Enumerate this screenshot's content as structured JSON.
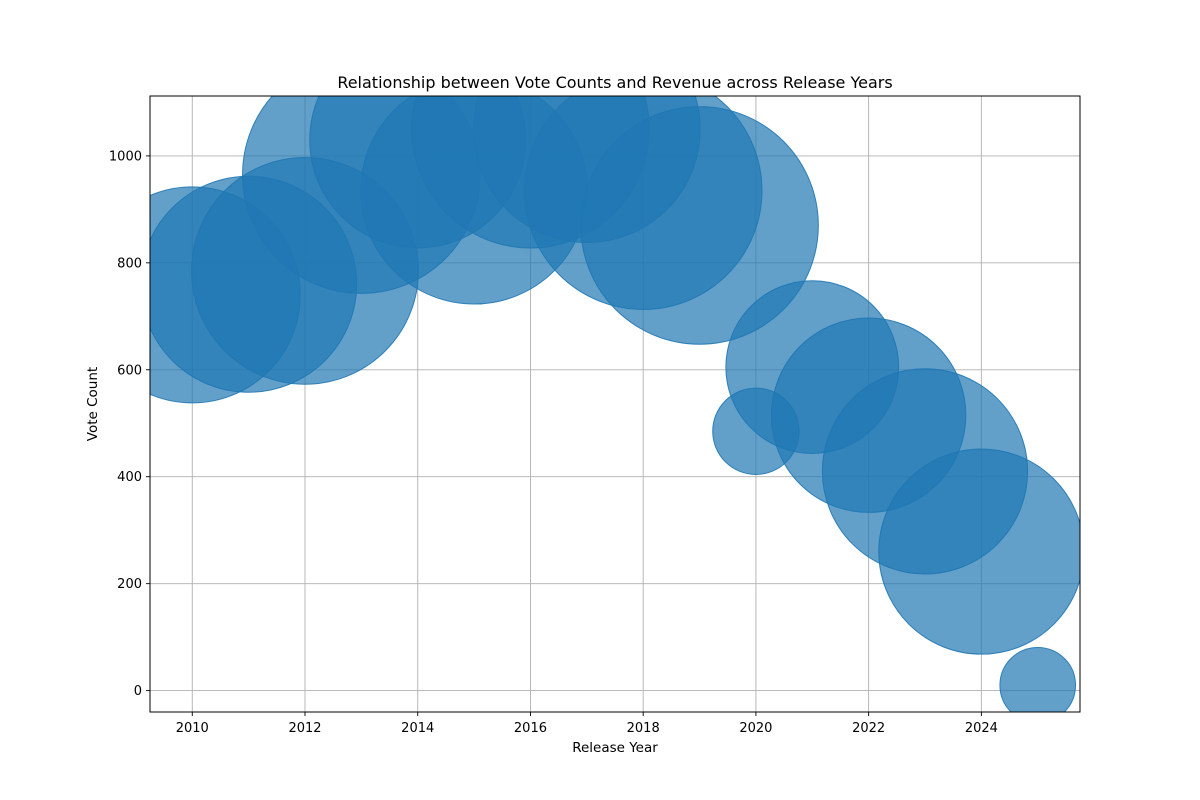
{
  "chart_data": {
    "type": "scatter",
    "title": "Relationship between Vote Counts and Revenue across Release Years",
    "xlabel": "Release Year",
    "ylabel": "Vote Count",
    "xlim": [
      2009.25,
      2025.75
    ],
    "ylim": [
      -40,
      1112
    ],
    "xticks": [
      2010,
      2012,
      2014,
      2016,
      2018,
      2020,
      2022,
      2024
    ],
    "yticks": [
      0,
      200,
      400,
      600,
      800,
      1000
    ],
    "grid": true,
    "color": "#1f77b4",
    "alpha": 0.7,
    "points": [
      {
        "x": 2010,
        "y": 740
      },
      {
        "x": 2011,
        "y": 760
      },
      {
        "x": 2012,
        "y": 785
      },
      {
        "x": 2013,
        "y": 965
      },
      {
        "x": 2014,
        "y": 1030
      },
      {
        "x": 2015,
        "y": 935
      },
      {
        "x": 2016,
        "y": 1050
      },
      {
        "x": 2017,
        "y": 1050
      },
      {
        "x": 2018,
        "y": 935
      },
      {
        "x": 2019,
        "y": 870
      },
      {
        "x": 2020,
        "y": 485
      },
      {
        "x": 2021,
        "y": 605
      },
      {
        "x": 2022,
        "y": 515
      },
      {
        "x": 2023,
        "y": 410
      },
      {
        "x": 2024,
        "y": 260
      },
      {
        "x": 2025,
        "y": 10
      }
    ],
    "bubble_size_relative": [
      1.0,
      1.0,
      1.05,
      1.1,
      1.0,
      1.05,
      1.1,
      1.05,
      1.1,
      1.1,
      0.4,
      0.8,
      0.9,
      0.95,
      0.95,
      0.35
    ]
  }
}
